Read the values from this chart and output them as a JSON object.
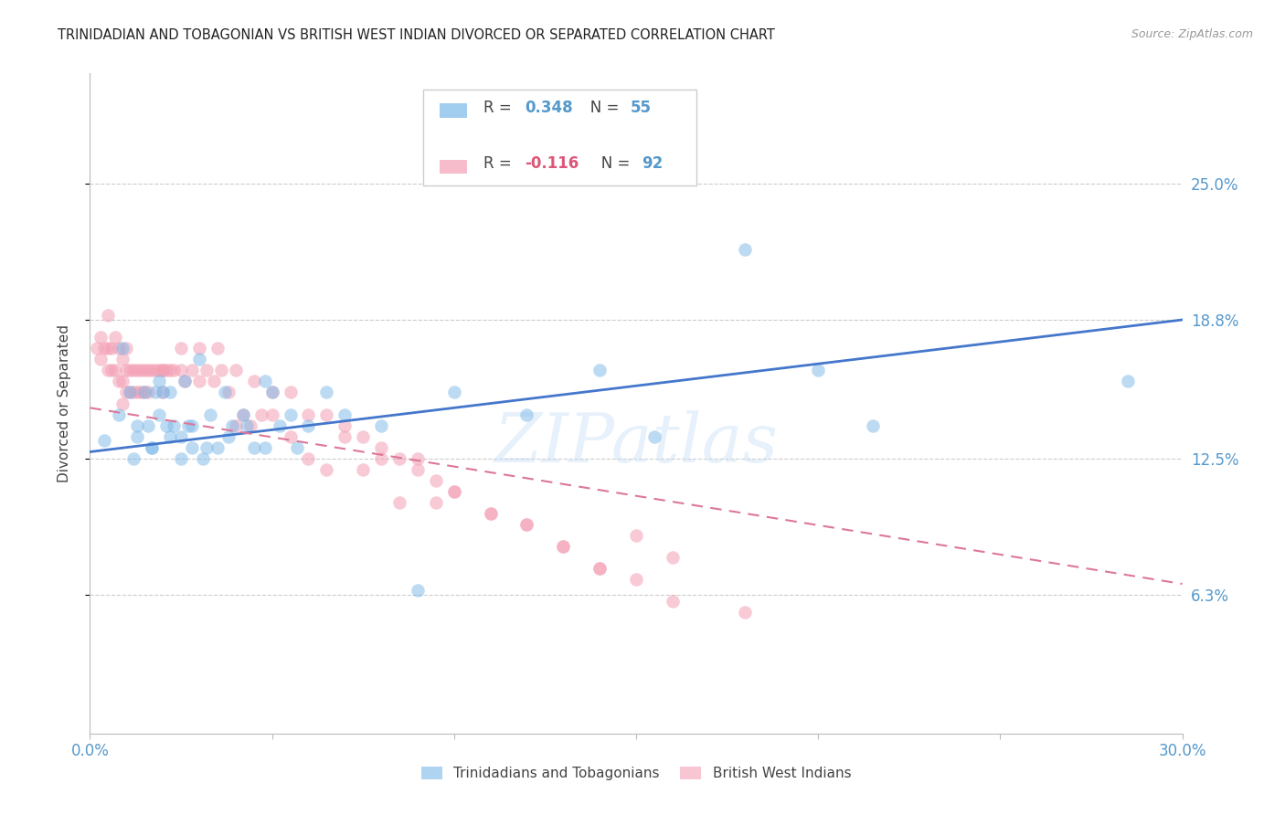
{
  "title": "TRINIDADIAN AND TOBAGONIAN VS BRITISH WEST INDIAN DIVORCED OR SEPARATED CORRELATION CHART",
  "source": "Source: ZipAtlas.com",
  "ylabel": "Divorced or Separated",
  "xlim": [
    0.0,
    0.3
  ],
  "ylim": [
    0.0,
    0.3
  ],
  "ytick_labels_right": [
    "25.0%",
    "18.8%",
    "12.5%",
    "6.3%"
  ],
  "ytick_values_right": [
    0.25,
    0.188,
    0.125,
    0.063
  ],
  "background_color": "#ffffff",
  "blue_color": "#7ab8e8",
  "pink_color": "#f4a0b5",
  "blue_line_color": "#4477cc",
  "pink_line_color": "#dd7799",
  "label1": "Trinidadians and Tobagonians",
  "label2": "British West Indians",
  "watermark": "ZIPatlas",
  "blue_line_y_start": 0.128,
  "blue_line_y_end": 0.188,
  "pink_line_y_start": 0.148,
  "pink_line_y_end": 0.068,
  "blue_scatter_x": [
    0.004,
    0.009,
    0.011,
    0.013,
    0.015,
    0.016,
    0.017,
    0.018,
    0.019,
    0.02,
    0.021,
    0.022,
    0.023,
    0.025,
    0.026,
    0.027,
    0.028,
    0.03,
    0.031,
    0.033,
    0.035,
    0.037,
    0.039,
    0.042,
    0.045,
    0.048,
    0.05,
    0.055,
    0.06,
    0.065,
    0.07,
    0.08,
    0.09,
    0.1,
    0.12,
    0.14,
    0.155,
    0.18,
    0.2,
    0.215,
    0.285,
    0.008,
    0.012,
    0.013,
    0.017,
    0.019,
    0.022,
    0.025,
    0.028,
    0.032,
    0.038,
    0.043,
    0.048,
    0.052,
    0.057
  ],
  "blue_scatter_y": [
    0.133,
    0.175,
    0.155,
    0.135,
    0.155,
    0.14,
    0.13,
    0.155,
    0.16,
    0.155,
    0.14,
    0.155,
    0.14,
    0.135,
    0.16,
    0.14,
    0.13,
    0.17,
    0.125,
    0.145,
    0.13,
    0.155,
    0.14,
    0.145,
    0.13,
    0.16,
    0.155,
    0.145,
    0.14,
    0.155,
    0.145,
    0.14,
    0.065,
    0.155,
    0.145,
    0.165,
    0.135,
    0.22,
    0.165,
    0.14,
    0.16,
    0.145,
    0.125,
    0.14,
    0.13,
    0.145,
    0.135,
    0.125,
    0.14,
    0.13,
    0.135,
    0.14,
    0.13,
    0.14,
    0.13
  ],
  "pink_scatter_x": [
    0.002,
    0.003,
    0.003,
    0.004,
    0.005,
    0.005,
    0.005,
    0.006,
    0.006,
    0.007,
    0.007,
    0.008,
    0.008,
    0.009,
    0.009,
    0.009,
    0.01,
    0.01,
    0.01,
    0.011,
    0.011,
    0.012,
    0.012,
    0.013,
    0.013,
    0.014,
    0.014,
    0.015,
    0.015,
    0.016,
    0.016,
    0.017,
    0.018,
    0.019,
    0.02,
    0.02,
    0.021,
    0.022,
    0.023,
    0.025,
    0.026,
    0.028,
    0.03,
    0.032,
    0.034,
    0.036,
    0.038,
    0.04,
    0.042,
    0.044,
    0.047,
    0.05,
    0.055,
    0.06,
    0.065,
    0.07,
    0.075,
    0.08,
    0.085,
    0.09,
    0.095,
    0.1,
    0.11,
    0.12,
    0.13,
    0.14,
    0.15,
    0.16,
    0.18,
    0.02,
    0.025,
    0.03,
    0.035,
    0.04,
    0.045,
    0.05,
    0.055,
    0.06,
    0.065,
    0.07,
    0.075,
    0.08,
    0.085,
    0.09,
    0.095,
    0.1,
    0.11,
    0.12,
    0.13,
    0.14,
    0.15,
    0.16
  ],
  "pink_scatter_y": [
    0.175,
    0.18,
    0.17,
    0.175,
    0.19,
    0.175,
    0.165,
    0.175,
    0.165,
    0.18,
    0.165,
    0.175,
    0.16,
    0.17,
    0.16,
    0.15,
    0.175,
    0.165,
    0.155,
    0.165,
    0.155,
    0.165,
    0.155,
    0.165,
    0.155,
    0.165,
    0.155,
    0.165,
    0.155,
    0.165,
    0.155,
    0.165,
    0.165,
    0.165,
    0.165,
    0.155,
    0.165,
    0.165,
    0.165,
    0.165,
    0.16,
    0.165,
    0.16,
    0.165,
    0.16,
    0.165,
    0.155,
    0.14,
    0.145,
    0.14,
    0.145,
    0.145,
    0.135,
    0.125,
    0.12,
    0.135,
    0.12,
    0.125,
    0.105,
    0.125,
    0.105,
    0.11,
    0.1,
    0.095,
    0.085,
    0.075,
    0.09,
    0.08,
    0.055,
    0.165,
    0.175,
    0.175,
    0.175,
    0.165,
    0.16,
    0.155,
    0.155,
    0.145,
    0.145,
    0.14,
    0.135,
    0.13,
    0.125,
    0.12,
    0.115,
    0.11,
    0.1,
    0.095,
    0.085,
    0.075,
    0.07,
    0.06
  ]
}
